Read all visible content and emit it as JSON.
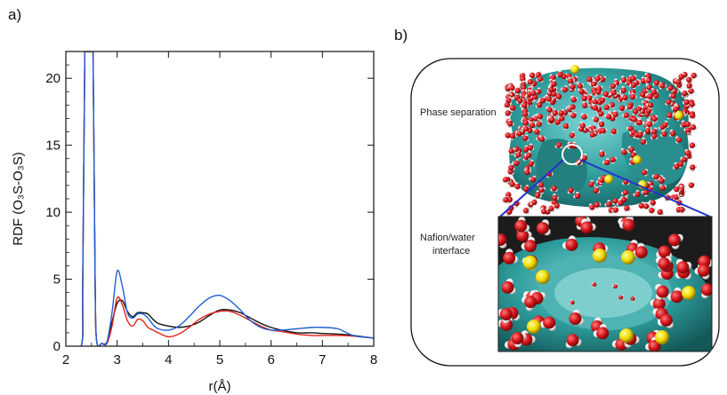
{
  "panel_a_label": "a)",
  "panel_b_label": "b)",
  "annotations": {
    "phase_separation": "Phase separation",
    "interface_line1": "Nafion/water",
    "interface_line2": "interface"
  },
  "colors": {
    "black_series": "#111111",
    "red_series": "#e0231b",
    "blue_series": "#1f5fd6",
    "nafion_surface": "#2e9c9c",
    "oxygen": "#d0141a",
    "hydrogen": "#f2f2f2",
    "sulfur": "#f0d800",
    "zoom_lines": "#2233c8"
  },
  "chart_data": {
    "type": "line",
    "title": "",
    "xlabel": "r(Å)",
    "ylabel": "RDF (O₃S-O₃S)",
    "xlim": [
      2,
      8
    ],
    "ylim": [
      0,
      22
    ],
    "xticks": [
      2,
      3,
      4,
      5,
      6,
      7,
      8
    ],
    "yticks": [
      0,
      5,
      10,
      15,
      20
    ],
    "grid": false,
    "legend": "none",
    "series": [
      {
        "color": "#111111",
        "x": [
          2.0,
          2.3,
          2.33,
          2.37,
          2.4,
          2.45,
          2.5,
          2.53,
          2.57,
          2.6,
          2.7,
          2.8,
          2.9,
          3.0,
          3.1,
          3.2,
          3.3,
          3.4,
          3.5,
          3.6,
          3.7,
          3.8,
          4.0,
          4.2,
          4.4,
          4.6,
          4.8,
          5.0,
          5.2,
          5.4,
          5.6,
          5.8,
          6.0,
          6.2,
          6.5,
          6.8,
          7.0,
          7.3,
          7.6,
          8.0
        ],
        "y": [
          0.0,
          0.0,
          5.0,
          22.0,
          22.0,
          22.0,
          22.0,
          22.0,
          5.0,
          0.4,
          0.2,
          0.3,
          1.8,
          3.2,
          3.4,
          2.6,
          2.2,
          2.5,
          2.5,
          2.4,
          2.0,
          1.7,
          1.5,
          1.4,
          1.5,
          1.8,
          2.3,
          2.7,
          2.7,
          2.5,
          2.1,
          1.7,
          1.4,
          1.2,
          1.0,
          1.0,
          0.95,
          0.9,
          0.8,
          0.6
        ]
      },
      {
        "color": "#e0231b",
        "x": [
          2.0,
          2.3,
          2.33,
          2.37,
          2.4,
          2.45,
          2.5,
          2.53,
          2.57,
          2.6,
          2.7,
          2.8,
          2.9,
          3.0,
          3.1,
          3.2,
          3.3,
          3.4,
          3.5,
          3.6,
          3.7,
          3.8,
          4.0,
          4.2,
          4.4,
          4.6,
          4.8,
          5.0,
          5.2,
          5.4,
          5.6,
          5.8,
          6.0,
          6.2,
          6.5,
          6.8,
          7.0,
          7.3,
          7.6,
          8.0
        ],
        "y": [
          0.0,
          0.0,
          5.0,
          22.0,
          22.0,
          22.0,
          22.0,
          22.0,
          5.0,
          0.4,
          0.2,
          0.2,
          1.5,
          3.6,
          3.1,
          1.9,
          1.5,
          2.0,
          1.9,
          1.4,
          1.2,
          1.0,
          0.7,
          0.9,
          1.4,
          2.0,
          2.4,
          2.6,
          2.6,
          2.3,
          1.9,
          1.5,
          1.2,
          1.1,
          0.9,
          0.8,
          0.8,
          0.8,
          0.75,
          0.6
        ]
      },
      {
        "color": "#1f5fd6",
        "x": [
          2.0,
          2.3,
          2.33,
          2.37,
          2.4,
          2.45,
          2.5,
          2.53,
          2.57,
          2.6,
          2.7,
          2.8,
          2.9,
          3.0,
          3.1,
          3.2,
          3.3,
          3.4,
          3.5,
          3.6,
          3.7,
          3.8,
          4.0,
          4.2,
          4.4,
          4.6,
          4.8,
          5.0,
          5.2,
          5.4,
          5.6,
          5.8,
          6.0,
          6.2,
          6.5,
          6.8,
          7.0,
          7.3,
          7.6,
          8.0
        ],
        "y": [
          0.0,
          0.0,
          5.0,
          22.0,
          22.0,
          22.0,
          22.0,
          22.0,
          5.0,
          0.4,
          0.2,
          0.3,
          2.5,
          5.6,
          4.5,
          2.5,
          2.1,
          2.4,
          2.4,
          2.1,
          1.6,
          1.3,
          1.2,
          1.5,
          2.2,
          3.0,
          3.6,
          3.8,
          3.4,
          2.7,
          1.9,
          1.4,
          1.2,
          1.2,
          1.3,
          1.4,
          1.4,
          1.3,
          0.8,
          0.6
        ]
      }
    ]
  }
}
